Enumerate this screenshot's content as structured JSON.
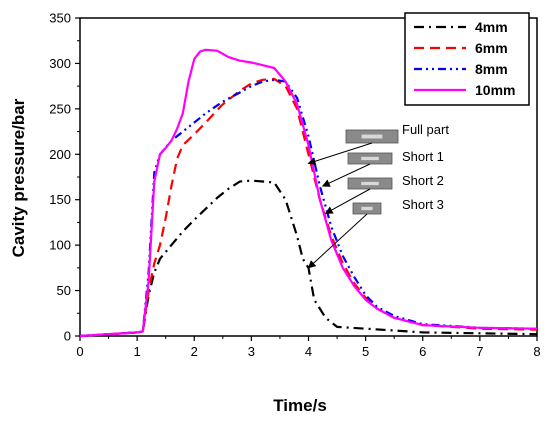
{
  "chart_data": {
    "type": "line",
    "xlabel": "Time/s",
    "ylabel": "Cavity pressure/bar",
    "xlim": [
      0,
      8
    ],
    "ylim": [
      0,
      350
    ],
    "xticks": [
      0,
      1,
      2,
      3,
      4,
      5,
      6,
      7,
      8
    ],
    "yticks": [
      0,
      50,
      100,
      150,
      200,
      250,
      300,
      350
    ],
    "grid": false,
    "legend_position": "top-right",
    "series": [
      {
        "name": "4mm",
        "color": "#000000",
        "dash": "dash-dot",
        "points": [
          [
            0,
            0
          ],
          [
            0.5,
            2
          ],
          [
            1.0,
            4
          ],
          [
            1.1,
            5
          ],
          [
            1.2,
            45
          ],
          [
            1.3,
            70
          ],
          [
            1.4,
            85
          ],
          [
            1.6,
            100
          ],
          [
            1.8,
            115
          ],
          [
            2.0,
            128
          ],
          [
            2.2,
            140
          ],
          [
            2.4,
            152
          ],
          [
            2.6,
            162
          ],
          [
            2.8,
            170
          ],
          [
            3.0,
            171
          ],
          [
            3.2,
            170
          ],
          [
            3.4,
            169
          ],
          [
            3.6,
            150
          ],
          [
            3.8,
            110
          ],
          [
            3.9,
            85
          ],
          [
            4.0,
            75
          ],
          [
            4.1,
            40
          ],
          [
            4.3,
            20
          ],
          [
            4.5,
            10
          ],
          [
            5.0,
            8
          ],
          [
            5.5,
            6
          ],
          [
            6.0,
            4
          ],
          [
            7.0,
            3
          ],
          [
            8.0,
            2
          ]
        ]
      },
      {
        "name": "6mm",
        "color": "#ff0000",
        "dash": "dash",
        "points": [
          [
            0,
            0
          ],
          [
            0.5,
            2
          ],
          [
            1.0,
            4
          ],
          [
            1.1,
            5
          ],
          [
            1.2,
            50
          ],
          [
            1.3,
            80
          ],
          [
            1.4,
            100
          ],
          [
            1.5,
            130
          ],
          [
            1.6,
            165
          ],
          [
            1.7,
            195
          ],
          [
            1.8,
            210
          ],
          [
            2.0,
            222
          ],
          [
            2.2,
            235
          ],
          [
            2.5,
            255
          ],
          [
            2.8,
            270
          ],
          [
            3.0,
            278
          ],
          [
            3.2,
            282
          ],
          [
            3.4,
            283
          ],
          [
            3.6,
            275
          ],
          [
            3.8,
            250
          ],
          [
            4.0,
            200
          ],
          [
            4.2,
            150
          ],
          [
            4.4,
            110
          ],
          [
            4.6,
            80
          ],
          [
            4.8,
            58
          ],
          [
            5.0,
            42
          ],
          [
            5.2,
            30
          ],
          [
            5.5,
            20
          ],
          [
            6.0,
            12
          ],
          [
            7.0,
            8
          ],
          [
            8.0,
            7
          ]
        ]
      },
      {
        "name": "8mm",
        "color": "#0000ff",
        "dash": "dash-dot-dot",
        "points": [
          [
            0,
            0
          ],
          [
            0.5,
            2
          ],
          [
            1.0,
            4
          ],
          [
            1.1,
            5
          ],
          [
            1.2,
            70
          ],
          [
            1.3,
            180
          ],
          [
            1.4,
            200
          ],
          [
            1.6,
            215
          ],
          [
            1.8,
            225
          ],
          [
            2.0,
            235
          ],
          [
            2.2,
            245
          ],
          [
            2.5,
            258
          ],
          [
            2.8,
            268
          ],
          [
            3.0,
            275
          ],
          [
            3.2,
            280
          ],
          [
            3.4,
            282
          ],
          [
            3.6,
            280
          ],
          [
            3.8,
            262
          ],
          [
            4.0,
            220
          ],
          [
            4.2,
            165
          ],
          [
            4.4,
            120
          ],
          [
            4.6,
            88
          ],
          [
            4.8,
            65
          ],
          [
            5.0,
            45
          ],
          [
            5.2,
            32
          ],
          [
            5.5,
            22
          ],
          [
            6.0,
            13
          ],
          [
            7.0,
            9
          ],
          [
            8.0,
            8
          ]
        ]
      },
      {
        "name": "10mm",
        "color": "#ff00ff",
        "dash": "solid",
        "points": [
          [
            0,
            0
          ],
          [
            0.5,
            2
          ],
          [
            1.0,
            4
          ],
          [
            1.1,
            5
          ],
          [
            1.2,
            60
          ],
          [
            1.3,
            170
          ],
          [
            1.4,
            200
          ],
          [
            1.5,
            207
          ],
          [
            1.6,
            215
          ],
          [
            1.7,
            228
          ],
          [
            1.8,
            245
          ],
          [
            1.9,
            280
          ],
          [
            2.0,
            305
          ],
          [
            2.1,
            313
          ],
          [
            2.2,
            315
          ],
          [
            2.4,
            314
          ],
          [
            2.6,
            307
          ],
          [
            2.8,
            303
          ],
          [
            3.0,
            301
          ],
          [
            3.2,
            298
          ],
          [
            3.4,
            295
          ],
          [
            3.6,
            280
          ],
          [
            3.8,
            255
          ],
          [
            4.0,
            210
          ],
          [
            4.2,
            150
          ],
          [
            4.4,
            105
          ],
          [
            4.6,
            75
          ],
          [
            4.8,
            55
          ],
          [
            5.0,
            40
          ],
          [
            5.2,
            30
          ],
          [
            5.5,
            20
          ],
          [
            6.0,
            12
          ],
          [
            7.0,
            9
          ],
          [
            8.0,
            8
          ]
        ]
      }
    ],
    "annotations": [
      {
        "label": "Full part",
        "target": [
          4.0,
          190
        ]
      },
      {
        "label": "Short 1",
        "target": [
          4.25,
          165
        ]
      },
      {
        "label": "Short 2",
        "target": [
          4.3,
          135
        ]
      },
      {
        "label": "Short 3",
        "target": [
          4.0,
          75
        ]
      }
    ]
  }
}
